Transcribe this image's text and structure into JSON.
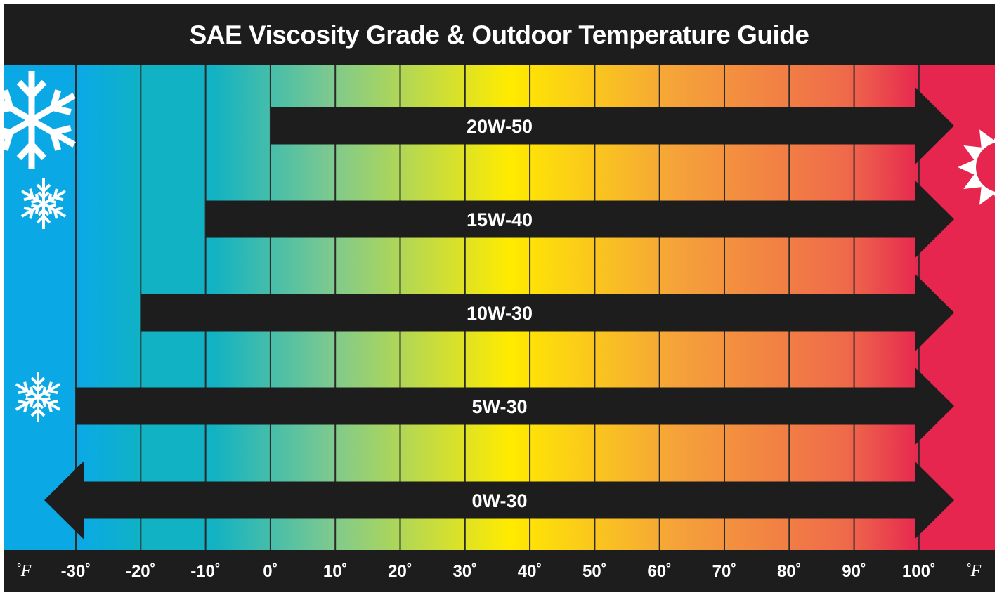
{
  "title": "SAE Viscosity Grade & Outdoor Temperature Guide",
  "chart_data": {
    "type": "range-bar",
    "title": "SAE Viscosity Grade & Outdoor Temperature Guide",
    "xlabel": "˚F",
    "unit_label_left": "˚F",
    "unit_label_right": "˚F",
    "x_ticks": [
      -30,
      -20,
      -10,
      0,
      10,
      20,
      30,
      40,
      50,
      60,
      70,
      80,
      90,
      100
    ],
    "x_tick_labels": [
      "-30˚",
      "-20˚",
      "-10˚",
      "0˚",
      "10˚",
      "20˚",
      "30˚",
      "40˚",
      "50˚",
      "60˚",
      "70˚",
      "80˚",
      "90˚",
      "100˚"
    ],
    "xlim": [
      -40,
      110
    ],
    "series": [
      {
        "name": "20W-50",
        "min": 0,
        "max": 100,
        "open_min": false,
        "open_max": true
      },
      {
        "name": "15W-40",
        "min": -10,
        "max": 100,
        "open_min": false,
        "open_max": true
      },
      {
        "name": "10W-30",
        "min": -20,
        "max": 100,
        "open_min": false,
        "open_max": true
      },
      {
        "name": "5W-30",
        "min": -30,
        "max": 100,
        "open_min": false,
        "open_max": true
      },
      {
        "name": "0W-30",
        "min": -40,
        "max": 100,
        "open_min": true,
        "open_max": true
      }
    ],
    "colors": {
      "cold": "#0aa9e6",
      "teal": "#10b2c4",
      "mid_green": "#7dc98f",
      "yellow": "#ffeb00",
      "orange": "#f5a23a",
      "red_orange": "#ef6a4a",
      "hot": "#e6264f",
      "bar": "#1d1d1d",
      "text": "#ffffff"
    },
    "icons": [
      "large-snowflake-icon",
      "medium-snowflake-icon",
      "small-snowflake-icon",
      "sun-icon"
    ]
  }
}
